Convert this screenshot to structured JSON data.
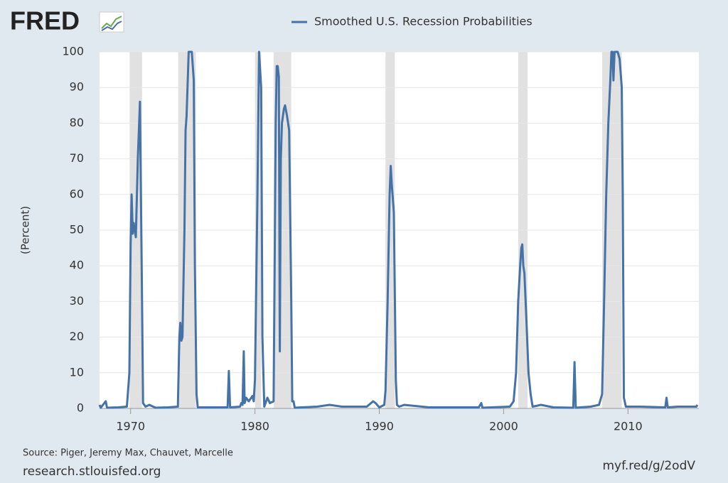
{
  "chart_data": {
    "type": "line",
    "brand": "FRED",
    "ylabel": "(Percent)",
    "source": "Source: Piger, Jeremy Max, Chauvet, Marcelle",
    "site": "research.stlouisfed.org",
    "short_link": "myf.red/g/2odV",
    "xlim": [
      1967.5,
      2015.7
    ],
    "xticks": [
      1970,
      1980,
      1990,
      2000,
      2010
    ],
    "ylim": [
      0,
      100
    ],
    "yticks": [
      0,
      10,
      20,
      30,
      40,
      50,
      60,
      70,
      80,
      90,
      100
    ],
    "grid": true,
    "recessions": [
      [
        1969.92,
        1970.92
      ],
      [
        1973.83,
        1975.25
      ],
      [
        1980.0,
        1980.5
      ],
      [
        1981.5,
        1982.92
      ],
      [
        1990.5,
        1991.25
      ],
      [
        2001.17,
        2001.92
      ],
      [
        2007.92,
        2009.5
      ]
    ],
    "recession_color": "#e1e1e1",
    "x": [
      1967.5,
      1967.6,
      1968.0,
      1968.1,
      1969.0,
      1969.7,
      1969.9,
      1970.0,
      1970.08,
      1970.17,
      1970.25,
      1970.42,
      1970.58,
      1970.75,
      1970.92,
      1971.0,
      1971.2,
      1971.5,
      1972.0,
      1973.0,
      1973.8,
      1973.92,
      1974.0,
      1974.08,
      1974.17,
      1974.33,
      1974.42,
      1974.5,
      1974.67,
      1974.92,
      1975.08,
      1975.17,
      1975.3,
      1975.4,
      1976.5,
      1977.8,
      1977.9,
      1978.0,
      1978.8,
      1978.9,
      1979.0,
      1979.1,
      1979.17,
      1979.3,
      1979.5,
      1979.8,
      1979.9,
      1980.0,
      1980.2,
      1980.33,
      1980.5,
      1980.6,
      1980.75,
      1981.0,
      1981.2,
      1981.5,
      1981.67,
      1981.75,
      1981.83,
      1981.92,
      1982.0,
      1982.08,
      1982.17,
      1982.33,
      1982.42,
      1982.58,
      1982.75,
      1982.92,
      1983.0,
      1983.1,
      1983.2,
      1985.0,
      1986.0,
      1987.0,
      1989.0,
      1989.5,
      1989.7,
      1990.0,
      1990.4,
      1990.5,
      1990.67,
      1990.83,
      1990.92,
      1991.0,
      1991.17,
      1991.33,
      1991.42,
      1991.6,
      1992.0,
      1994.0,
      1998.0,
      1998.2,
      1998.3,
      2000.5,
      2000.8,
      2001.0,
      2001.17,
      2001.33,
      2001.42,
      2001.5,
      2001.58,
      2001.67,
      2001.83,
      2002.0,
      2002.17,
      2002.33,
      2003.0,
      2004.0,
      2005.6,
      2005.7,
      2005.8,
      2007.0,
      2007.67,
      2007.92,
      2008.08,
      2008.25,
      2008.42,
      2008.58,
      2008.67,
      2008.75,
      2008.83,
      2008.92,
      2009.17,
      2009.33,
      2009.5,
      2009.58,
      2009.67,
      2009.83,
      2011.0,
      2013.0,
      2013.1,
      2013.2,
      2014.0,
      2015.5,
      2015.58
    ],
    "series": [
      {
        "name": "Smoothed U.S. Recession Probabilities",
        "color": "#4572a7",
        "values": [
          1,
          0.2,
          2,
          0.2,
          0.3,
          0.5,
          10,
          46,
          60,
          49,
          52,
          48,
          70,
          86,
          30,
          1.5,
          0.5,
          1,
          0.2,
          0.3,
          0.5,
          20,
          24,
          19,
          20,
          50,
          78,
          82,
          100,
          100,
          92,
          40,
          4,
          0.3,
          0.3,
          0.3,
          10.5,
          0.3,
          0.5,
          1.5,
          1,
          16,
          1.5,
          3,
          2,
          3.5,
          2,
          8,
          60,
          100,
          90,
          20,
          0.5,
          3,
          1.5,
          2,
          80,
          96,
          96,
          93,
          16,
          70,
          80,
          84,
          85,
          82,
          78,
          30,
          2,
          2,
          0.2,
          0.5,
          1,
          0.5,
          0.5,
          2,
          1.5,
          0.3,
          1,
          5,
          30,
          60,
          68,
          63,
          55,
          8,
          1,
          0.5,
          1,
          0.3,
          0.3,
          1.5,
          0.2,
          0.5,
          2,
          10,
          30,
          40,
          45,
          46,
          40,
          38,
          25,
          10,
          4,
          0.5,
          1,
          0.3,
          0.2,
          13,
          0.2,
          0.5,
          1,
          4,
          30,
          60,
          80,
          92,
          100,
          100,
          92,
          100,
          100,
          98,
          90,
          60,
          3,
          0.5,
          0.5,
          0.3,
          3,
          0.3,
          0.5,
          0.5,
          1
        ]
      }
    ]
  }
}
